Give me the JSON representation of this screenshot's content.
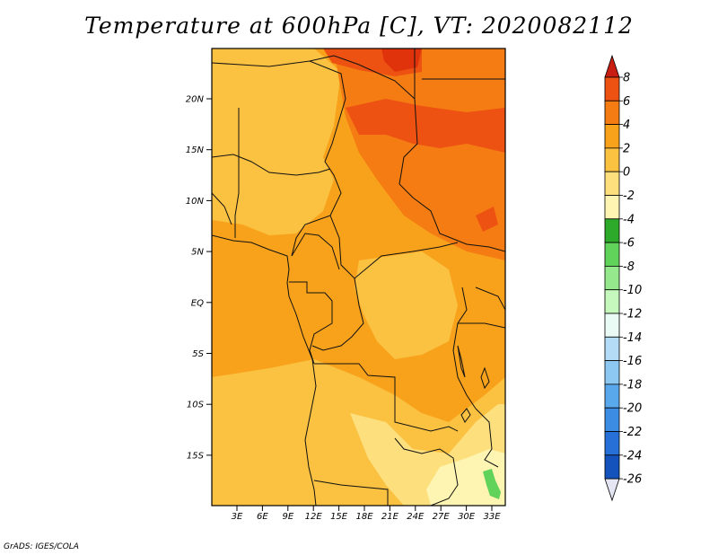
{
  "title": "Temperature at 600hPa [C], VT: 2020082112",
  "credit": "GrADS: IGES/COLA",
  "map": {
    "lat_ticks": [
      "20N",
      "15N",
      "10N",
      "5N",
      "EQ",
      "5S",
      "10S",
      "15S"
    ],
    "lon_ticks": [
      "3E",
      "6E",
      "9E",
      "12E",
      "15E",
      "18E",
      "21E",
      "24E",
      "27E",
      "30E",
      "33E"
    ]
  },
  "colorbar": {
    "labels": [
      "8",
      "6",
      "4",
      "2",
      "0",
      "-2",
      "-4",
      "-6",
      "-8",
      "-10",
      "-12",
      "-14",
      "-16",
      "-18",
      "-20",
      "-22",
      "-24",
      "-26"
    ],
    "colors": [
      "#e0330c",
      "#ee5212",
      "#f47c12",
      "#f8a21c",
      "#fbc141",
      "#fde07d",
      "#fdf5b1",
      "#2eaa2a",
      "#62d35a",
      "#96e88c",
      "#c6f7bc",
      "#e9fbf4",
      "#b4dcf7",
      "#8cc8f2",
      "#5aa8ec",
      "#3c8ce4",
      "#2670d8",
      "#1452bc",
      "#0c3494",
      "#0a1c64"
    ],
    "top_arrow_color": "#c81e12",
    "bottom_arrow_color": "#e4e6f4"
  },
  "field_colors": {
    "dominant": "#f8a21c",
    "light": "#fbc141",
    "warm": "#f47c12",
    "hot": "#ee5212",
    "hottest": "#e0330c",
    "pale": "#fde07d",
    "palest": "#fdf5b1",
    "green": "#62d35a"
  }
}
